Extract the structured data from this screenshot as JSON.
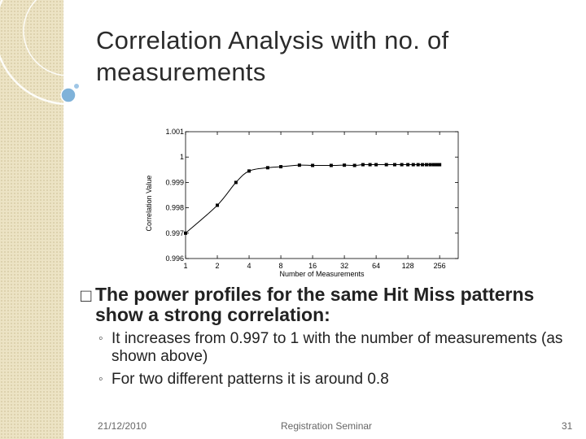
{
  "slide": {
    "title": "Correlation Analysis with no. of measurements",
    "bullet_marker": "□",
    "main_bullet": "The power profiles for the same Hit Miss patterns show a strong correlation:",
    "sub_marker": "◦",
    "sub_bullets": [
      "It increases from 0.997 to 1 with the number of measurements (as shown above)",
      "For two different patterns it is around 0.8"
    ],
    "footer": {
      "date": "21/12/2010",
      "center": "Registration Seminar",
      "page": "31"
    }
  },
  "chart_data": {
    "type": "line",
    "xlabel": "Number of Measurements",
    "ylabel": "Correlation Value",
    "x_scale": "log2",
    "xlim": [
      1,
      384
    ],
    "ylim": [
      0.996,
      1.001
    ],
    "x_ticks": [
      1,
      2,
      4,
      8,
      16,
      32,
      64,
      128,
      256
    ],
    "x_tick_labels": [
      "1",
      "2",
      "4",
      "8",
      "16",
      "32",
      "64",
      "128",
      "256"
    ],
    "y_ticks": [
      0.996,
      0.997,
      0.998,
      0.999,
      1,
      1.001
    ],
    "y_tick_labels": [
      "0.996",
      "0.997",
      "0.998",
      "0.999",
      "1",
      "1.001"
    ],
    "series": [
      {
        "x": [
          1,
          2,
          3,
          4,
          6,
          8,
          12,
          16,
          24,
          32,
          40,
          48,
          56,
          64,
          80,
          96,
          112,
          128,
          144,
          160,
          176,
          192,
          208,
          224,
          240,
          256
        ],
        "y": [
          0.997,
          0.9981,
          0.999,
          0.99945,
          0.99958,
          0.99962,
          0.99968,
          0.99967,
          0.99967,
          0.99968,
          0.99967,
          0.9997,
          0.9997,
          0.9997,
          0.9997,
          0.9997,
          0.9997,
          0.9997,
          0.9997,
          0.9997,
          0.9997,
          0.9997,
          0.9997,
          0.9997,
          0.9997,
          0.9997
        ]
      }
    ],
    "grid": false
  }
}
